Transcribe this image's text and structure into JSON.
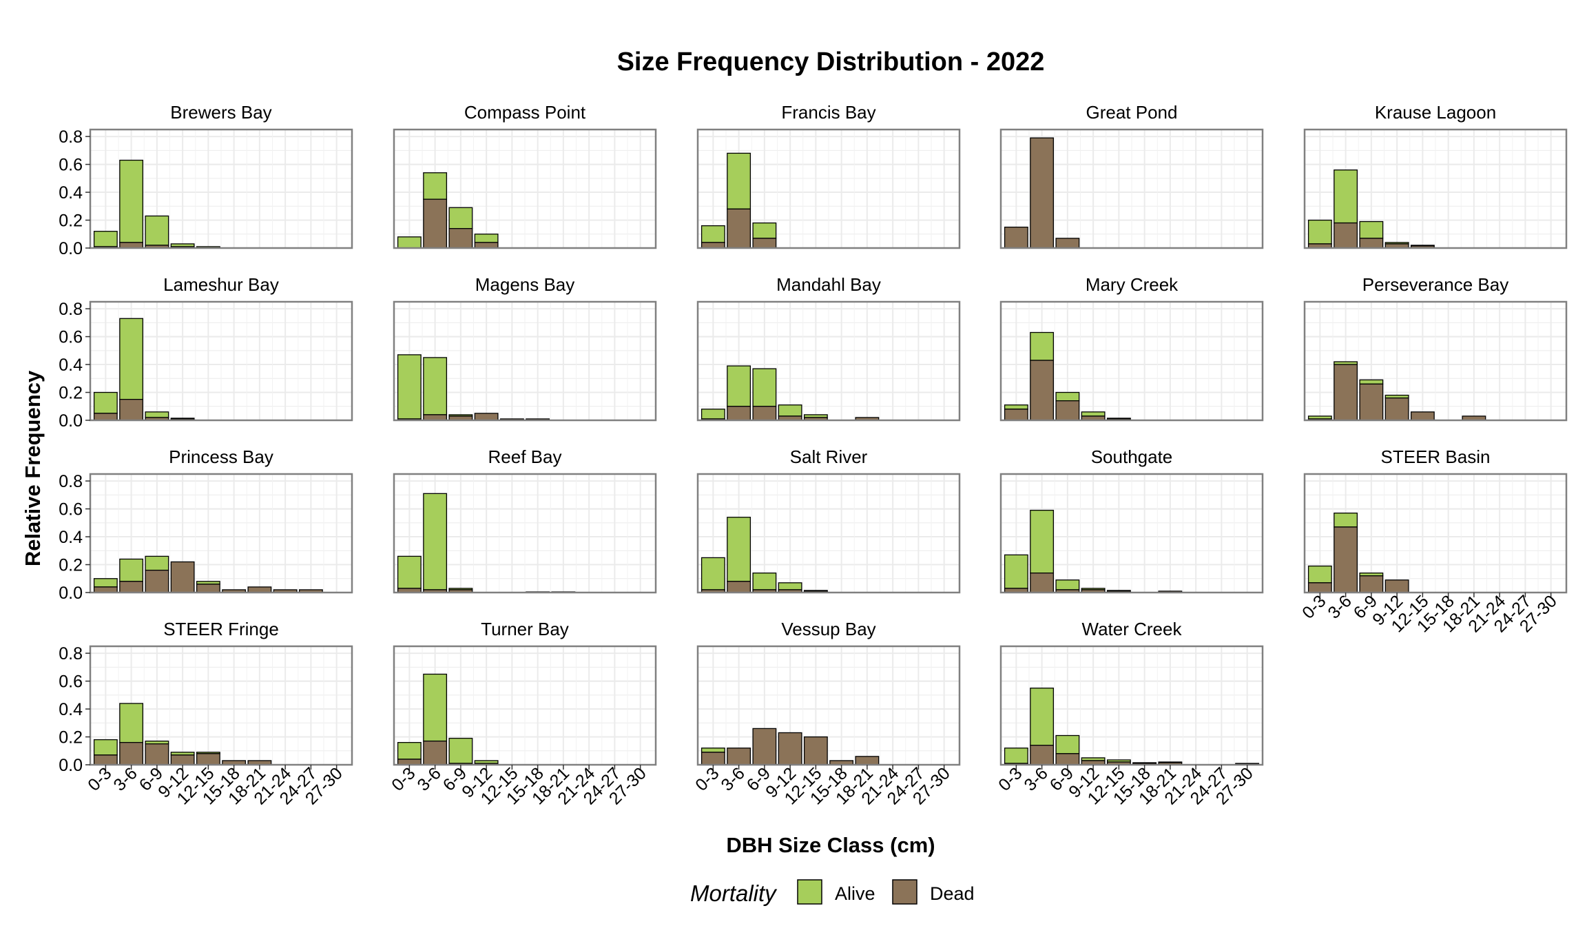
{
  "title": "Size Frequency Distribution - 2022",
  "xlabel": "DBH Size Class (cm)",
  "ylabel": "Relative Frequency",
  "legend": {
    "title": "Mortality",
    "items": [
      {
        "label": "Alive",
        "color": "#a6ce5b"
      },
      {
        "label": "Dead",
        "color": "#8b7358"
      }
    ]
  },
  "chart_data": {
    "type": "bar",
    "stacked": true,
    "categories": [
      "0-3",
      "3-6",
      "6-9",
      "9-12",
      "12-15",
      "15-18",
      "18-21",
      "21-24",
      "24-27",
      "27-30"
    ],
    "ylim": [
      0,
      0.85
    ],
    "yticks": [
      "0.0",
      "0.2",
      "0.4",
      "0.6",
      "0.8"
    ],
    "grid": true,
    "legend_position": "bottom",
    "series_names": [
      "Alive",
      "Dead"
    ],
    "panels": [
      {
        "name": "Brewers Bay",
        "dead": [
          0.01,
          0.04,
          0.02,
          0.01,
          0,
          0,
          0,
          0,
          0,
          0
        ],
        "total": [
          0.12,
          0.63,
          0.23,
          0.03,
          0.01,
          0,
          0,
          0,
          0,
          0
        ]
      },
      {
        "name": "Compass Point",
        "dead": [
          0,
          0.35,
          0.14,
          0.04,
          0,
          0,
          0,
          0,
          0,
          0
        ],
        "total": [
          0.08,
          0.54,
          0.29,
          0.1,
          0,
          0,
          0,
          0,
          0,
          0
        ]
      },
      {
        "name": "Francis Bay",
        "dead": [
          0.04,
          0.28,
          0.07,
          0,
          0,
          0,
          0,
          0,
          0,
          0
        ],
        "total": [
          0.16,
          0.68,
          0.18,
          0,
          0,
          0,
          0,
          0,
          0,
          0
        ]
      },
      {
        "name": "Great Pond",
        "dead": [
          0.15,
          0.79,
          0.07,
          0,
          0,
          0,
          0,
          0,
          0,
          0
        ],
        "total": [
          0.15,
          0.79,
          0.07,
          0,
          0,
          0,
          0,
          0,
          0,
          0
        ]
      },
      {
        "name": "Krause Lagoon",
        "dead": [
          0.03,
          0.18,
          0.07,
          0.03,
          0.015,
          0,
          0,
          0,
          0,
          0
        ],
        "total": [
          0.2,
          0.56,
          0.19,
          0.04,
          0.02,
          0,
          0,
          0,
          0,
          0
        ]
      },
      {
        "name": "Lameshur Bay",
        "dead": [
          0.05,
          0.15,
          0.02,
          0.01,
          0,
          0,
          0,
          0,
          0,
          0
        ],
        "total": [
          0.2,
          0.73,
          0.06,
          0.015,
          0,
          0,
          0,
          0,
          0,
          0
        ]
      },
      {
        "name": "Magens Bay",
        "dead": [
          0.01,
          0.04,
          0.03,
          0.05,
          0.01,
          0.01,
          0,
          0,
          0,
          0
        ],
        "total": [
          0.47,
          0.45,
          0.04,
          0.05,
          0.01,
          0.01,
          0,
          0,
          0,
          0
        ]
      },
      {
        "name": "Mandahl Bay",
        "dead": [
          0.01,
          0.1,
          0.1,
          0.03,
          0.02,
          0,
          0.02,
          0,
          0,
          0
        ],
        "total": [
          0.08,
          0.39,
          0.37,
          0.11,
          0.04,
          0,
          0.02,
          0,
          0,
          0
        ]
      },
      {
        "name": "Mary Creek",
        "dead": [
          0.08,
          0.43,
          0.14,
          0.03,
          0.01,
          0,
          0,
          0,
          0,
          0
        ],
        "total": [
          0.11,
          0.63,
          0.2,
          0.06,
          0.015,
          0,
          0,
          0,
          0,
          0
        ]
      },
      {
        "name": "Perseverance Bay",
        "dead": [
          0.01,
          0.4,
          0.26,
          0.16,
          0.06,
          0,
          0.03,
          0,
          0,
          0
        ],
        "total": [
          0.03,
          0.42,
          0.29,
          0.18,
          0.06,
          0,
          0.03,
          0,
          0,
          0
        ]
      },
      {
        "name": "Princess Bay",
        "dead": [
          0.04,
          0.08,
          0.16,
          0.22,
          0.06,
          0.02,
          0.04,
          0.02,
          0.02,
          0
        ],
        "total": [
          0.1,
          0.24,
          0.26,
          0.22,
          0.08,
          0.02,
          0.04,
          0.02,
          0.02,
          0
        ]
      },
      {
        "name": "Reef Bay",
        "dead": [
          0.03,
          0.02,
          0.02,
          0,
          0,
          0.005,
          0.005,
          0,
          0,
          0
        ],
        "total": [
          0.26,
          0.71,
          0.03,
          0,
          0,
          0.005,
          0.005,
          0,
          0,
          0
        ]
      },
      {
        "name": "Salt River",
        "dead": [
          0.02,
          0.08,
          0.02,
          0.02,
          0.01,
          0,
          0,
          0,
          0,
          0
        ],
        "total": [
          0.25,
          0.54,
          0.14,
          0.07,
          0.015,
          0,
          0,
          0,
          0,
          0
        ]
      },
      {
        "name": "Southgate",
        "dead": [
          0.03,
          0.14,
          0.02,
          0.02,
          0.01,
          0,
          0.01,
          0,
          0,
          0
        ],
        "total": [
          0.27,
          0.59,
          0.09,
          0.03,
          0.015,
          0,
          0.01,
          0,
          0,
          0
        ]
      },
      {
        "name": "STEER Basin",
        "dead": [
          0.07,
          0.47,
          0.12,
          0.09,
          0,
          0,
          0,
          0,
          0,
          0
        ],
        "total": [
          0.19,
          0.57,
          0.14,
          0.09,
          0,
          0,
          0,
          0,
          0,
          0
        ]
      },
      {
        "name": "STEER Fringe",
        "dead": [
          0.07,
          0.16,
          0.15,
          0.07,
          0.08,
          0.03,
          0.03,
          0,
          0,
          0
        ],
        "total": [
          0.18,
          0.44,
          0.17,
          0.09,
          0.09,
          0.03,
          0.03,
          0,
          0,
          0
        ]
      },
      {
        "name": "Turner Bay",
        "dead": [
          0.04,
          0.17,
          0.01,
          0.01,
          0,
          0,
          0,
          0,
          0,
          0
        ],
        "total": [
          0.16,
          0.65,
          0.19,
          0.03,
          0,
          0,
          0,
          0,
          0,
          0
        ]
      },
      {
        "name": "Vessup Bay",
        "dead": [
          0.09,
          0.12,
          0.26,
          0.23,
          0.2,
          0.03,
          0.06,
          0,
          0,
          0
        ],
        "total": [
          0.12,
          0.12,
          0.26,
          0.23,
          0.2,
          0.03,
          0.06,
          0,
          0,
          0
        ]
      },
      {
        "name": "Water Creek",
        "dead": [
          0.01,
          0.14,
          0.08,
          0.03,
          0.02,
          0.01,
          0.015,
          0,
          0,
          0.005
        ],
        "total": [
          0.12,
          0.55,
          0.21,
          0.05,
          0.035,
          0.015,
          0.02,
          0,
          0,
          0.01
        ]
      }
    ]
  }
}
